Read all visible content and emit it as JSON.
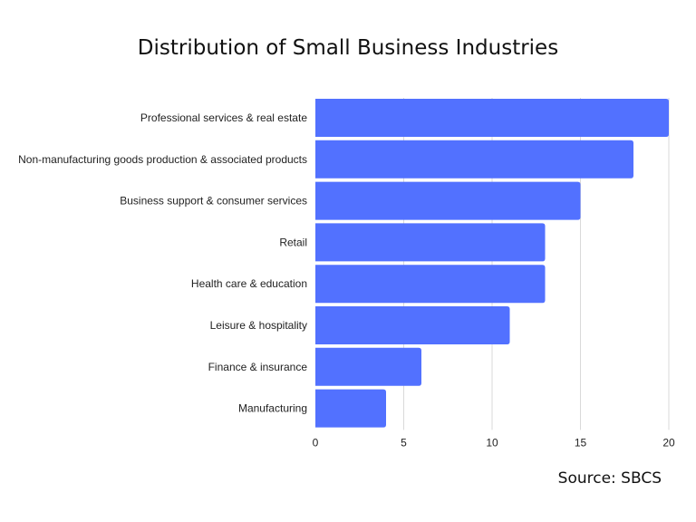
{
  "chart_data": {
    "type": "bar",
    "orientation": "horizontal",
    "title": "Distribution of Small Business Industries",
    "categories": [
      "Professional services & real estate",
      "Non-manufacturing goods production & associated products",
      "Business support & consumer services",
      "Retail",
      "Health care & education",
      "Leisure & hospitality",
      "Finance & insurance",
      "Manufacturing"
    ],
    "values": [
      20,
      18,
      15,
      13,
      13,
      11,
      6,
      4
    ],
    "xlim": [
      0,
      20
    ],
    "xticks": [
      0,
      5,
      10,
      15,
      20
    ],
    "xlabel": "",
    "ylabel": "",
    "grid": true,
    "bar_color": "#5271FF",
    "source": "Source: SBCS"
  }
}
